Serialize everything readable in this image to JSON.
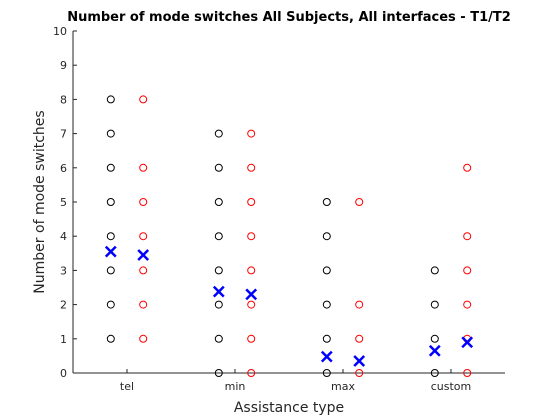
{
  "chart_data": {
    "type": "scatter",
    "title": "Number of mode switches All Subjects, All interfaces - T1/T2",
    "x_label": "Assistance type",
    "y_label": "Number of mode switches",
    "xlim": [
      0.5,
      4.5
    ],
    "xticks": [
      {
        "value": 1,
        "label": "tel"
      },
      {
        "value": 2,
        "label": "min"
      },
      {
        "value": 3,
        "label": "max"
      },
      {
        "value": 4,
        "label": "custom"
      }
    ],
    "ylim": [
      0,
      10
    ],
    "yticks": [
      0,
      1,
      2,
      3,
      4,
      5,
      6,
      7,
      8,
      9,
      10
    ],
    "series": [
      {
        "color": "#000000",
        "marker": "circle",
        "x": [
          0.85,
          0.85,
          0.85,
          0.85,
          0.85,
          0.85,
          0.85,
          0.85,
          1.85,
          1.85,
          1.85,
          1.85,
          1.85,
          1.85,
          1.85,
          1.85,
          2.85,
          2.85,
          2.85,
          2.85,
          2.85,
          2.85,
          3.85,
          3.85,
          3.85,
          3.85
        ],
        "values": [
          1,
          2,
          3,
          4,
          5,
          6,
          7,
          8,
          0,
          1,
          2,
          3,
          4,
          5,
          6,
          7,
          0,
          1,
          2,
          3,
          4,
          5,
          0,
          1,
          2,
          3
        ]
      },
      {
        "color": "#ff0000",
        "marker": "circle",
        "x": [
          1.15,
          1.15,
          1.15,
          1.15,
          1.15,
          1.15,
          1.15,
          2.15,
          2.15,
          2.15,
          2.15,
          2.15,
          2.15,
          2.15,
          2.15,
          3.15,
          3.15,
          3.15,
          3.15,
          4.15,
          4.15,
          4.15,
          4.15,
          4.15,
          4.15
        ],
        "values": [
          1,
          2,
          3,
          4,
          5,
          6,
          8,
          0,
          1,
          2,
          3,
          4,
          5,
          6,
          7,
          0,
          1,
          2,
          5,
          0,
          1,
          2,
          3,
          4,
          6
        ]
      },
      {
        "color": "#0000ff",
        "marker": "x",
        "x": [
          0.85,
          1.15,
          1.85,
          2.15,
          2.85,
          3.15,
          3.85,
          4.15
        ],
        "values": [
          3.55,
          3.45,
          2.38,
          2.3,
          0.48,
          0.35,
          0.65,
          0.9
        ]
      }
    ]
  }
}
